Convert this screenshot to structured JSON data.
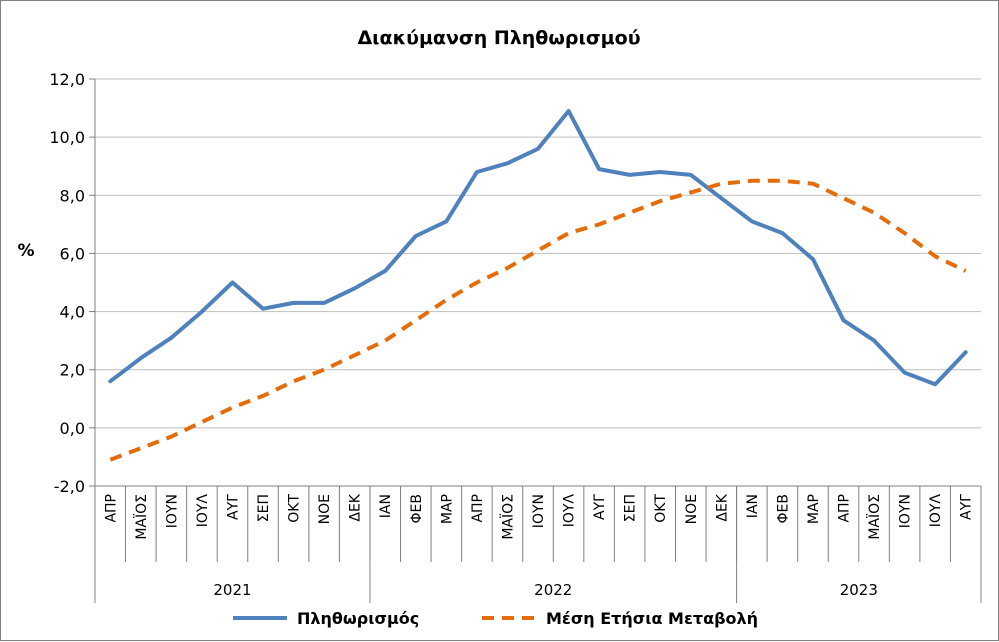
{
  "chart_data": {
    "type": "line",
    "title": "Διακύμανση Πληθωρισμού",
    "ylabel": "%",
    "ylim": [
      -2.0,
      12.0
    ],
    "yticks": [
      "-2,0",
      "0,0",
      "2,0",
      "4,0",
      "6,0",
      "8,0",
      "10,0",
      "12,0"
    ],
    "grid": true,
    "legend_position": "bottom",
    "categories": [
      "ΑΠΡ",
      "ΜΑΪΟΣ",
      "ΙΟΥΝ",
      "ΙΟΥΛ",
      "ΑΥΓ",
      "ΣΕΠ",
      "ΟΚΤ",
      "ΝΟΕ",
      "ΔΕΚ",
      "ΙΑΝ",
      "ΦΕΒ",
      "ΜΑΡ",
      "ΑΠΡ",
      "ΜΑΪΟΣ",
      "ΙΟΥΝ",
      "ΙΟΥΛ",
      "ΑΥΓ",
      "ΣΕΠ",
      "ΟΚΤ",
      "ΝΟΕ",
      "ΔΕΚ",
      "ΙΑΝ",
      "ΦΕΒ",
      "ΜΑΡ",
      "ΑΠΡ",
      "ΜΑΪΟΣ",
      "ΙΟΥΝ",
      "ΙΟΥΛ",
      "ΑΥΓ"
    ],
    "groups": [
      {
        "label": "2021",
        "count": 9
      },
      {
        "label": "2022",
        "count": 12
      },
      {
        "label": "2023",
        "count": 8
      }
    ],
    "series": [
      {
        "name": "Πληθωρισμός",
        "color": "#4F81BD",
        "style": "solid",
        "values": [
          1.6,
          2.4,
          3.1,
          4.0,
          5.0,
          4.1,
          4.3,
          4.3,
          4.8,
          5.4,
          6.6,
          7.1,
          8.8,
          9.1,
          9.6,
          10.9,
          8.9,
          8.7,
          8.8,
          8.7,
          7.9,
          7.1,
          6.7,
          5.8,
          3.7,
          3.0,
          1.9,
          1.5,
          2.6
        ]
      },
      {
        "name": "Μέση Ετήσια Μεταβολή",
        "color": "#E46C0A",
        "style": "dashed",
        "values": [
          -1.1,
          -0.7,
          -0.3,
          0.2,
          0.7,
          1.1,
          1.6,
          2.0,
          2.5,
          3.0,
          3.7,
          4.4,
          5.0,
          5.5,
          6.1,
          6.7,
          7.0,
          7.4,
          7.8,
          8.1,
          8.4,
          8.5,
          8.5,
          8.4,
          7.9,
          7.4,
          6.7,
          5.9,
          5.4
        ]
      }
    ]
  }
}
